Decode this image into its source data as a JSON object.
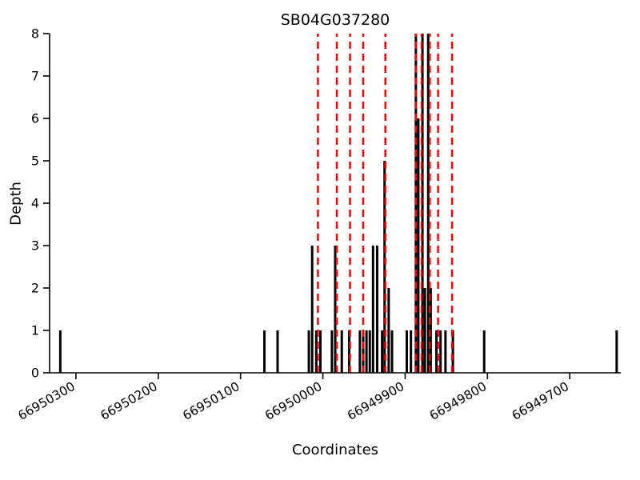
{
  "chart_data": {
    "type": "bar",
    "title": "SB04G037280",
    "xlabel": "Coordinates",
    "ylabel": "Depth",
    "bar_color": "#000000",
    "dashed_color": "#ff0000",
    "x_axis": {
      "min": 66949638,
      "max": 66950332,
      "reversed": true,
      "ticks": [
        66950300,
        66950200,
        66950100,
        66950000,
        66949900,
        66949800,
        66949700
      ]
    },
    "y_axis": {
      "min": 0,
      "max": 8,
      "ticks": [
        0,
        1,
        2,
        3,
        4,
        5,
        6,
        7,
        8
      ]
    },
    "bars": [
      [
        66950319,
        1
      ],
      [
        66950071,
        1
      ],
      [
        66950055,
        1
      ],
      [
        66950017,
        1
      ],
      [
        66950013,
        3
      ],
      [
        66950008,
        1
      ],
      [
        66950003,
        1
      ],
      [
        66949989,
        1
      ],
      [
        66949985,
        3
      ],
      [
        66949977,
        1
      ],
      [
        66949968,
        1
      ],
      [
        66949955,
        1
      ],
      [
        66949951,
        1
      ],
      [
        66949947,
        1
      ],
      [
        66949943,
        1
      ],
      [
        66949939,
        3
      ],
      [
        66949934,
        3
      ],
      [
        66949928,
        1
      ],
      [
        66949925,
        5
      ],
      [
        66949920,
        2
      ],
      [
        66949916,
        1
      ],
      [
        66949898,
        1
      ],
      [
        66949893,
        1
      ],
      [
        66949887,
        8
      ],
      [
        66949884,
        6
      ],
      [
        66949879,
        8
      ],
      [
        66949876,
        2
      ],
      [
        66949872,
        8
      ],
      [
        66949869,
        2
      ],
      [
        66949862,
        1
      ],
      [
        66949857,
        1
      ],
      [
        66949851,
        1
      ],
      [
        66949842,
        1
      ],
      [
        66949804,
        1
      ],
      [
        66949643,
        1
      ]
    ],
    "dashed_lines": [
      66950006,
      66949983,
      66949967,
      66949951,
      66949924,
      66949887,
      66949880,
      66949870,
      66949860,
      66949843
    ]
  }
}
